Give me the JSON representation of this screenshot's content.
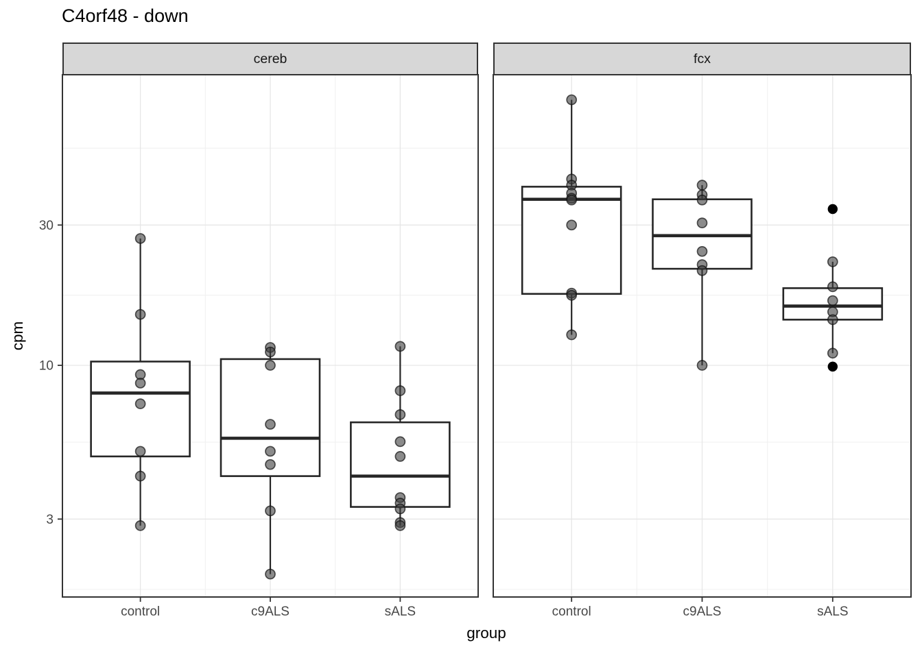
{
  "chart_data": {
    "type": "boxplot",
    "title": "C4orf48 - down",
    "xlabel": "group",
    "ylabel": "cpm",
    "categories": [
      "control",
      "c9ALS",
      "sALS"
    ],
    "y_axis": {
      "scale": "log10",
      "limits": [
        1.63,
        97
      ],
      "ticks": [
        {
          "value": 30,
          "label": "30"
        },
        {
          "value": 10,
          "label": "10"
        },
        {
          "value": 3,
          "label": "3"
        }
      ],
      "minor_ticks": [
        54.77,
        17.32,
        5.48,
        1.73
      ]
    },
    "legend": "none",
    "grid": "on",
    "facets": [
      {
        "label": "cereb",
        "groups": [
          {
            "name": "control",
            "q1": 4.9,
            "median": 8.05,
            "q3": 10.3,
            "whisker_low": 2.85,
            "whisker_high": 27,
            "points": [
              27,
              14.9,
              9.3,
              8.7,
              7.4,
              5.1,
              4.2,
              2.85
            ],
            "outliers": []
          },
          {
            "name": "c9ALS",
            "q1": 4.2,
            "median": 5.65,
            "q3": 10.5,
            "whisker_low": 1.95,
            "whisker_high": 11.5,
            "points": [
              11.5,
              11.1,
              10.0,
              6.3,
              5.1,
              4.6,
              3.2,
              1.95
            ],
            "outliers": []
          },
          {
            "name": "sALS",
            "q1": 3.3,
            "median": 4.2,
            "q3": 6.4,
            "whisker_low": 2.85,
            "whisker_high": 11.6,
            "points": [
              11.6,
              8.2,
              6.8,
              5.5,
              4.9,
              3.55,
              3.4,
              3.25,
              2.92,
              2.85
            ],
            "outliers": []
          }
        ]
      },
      {
        "label": "fcx",
        "groups": [
          {
            "name": "control",
            "q1": 17.5,
            "median": 36.7,
            "q3": 40.5,
            "whisker_low": 12.7,
            "whisker_high": 80,
            "points": [
              80,
              43,
              41,
              38.5,
              37,
              36.5,
              30,
              17.6,
              17.3,
              12.7
            ],
            "outliers": []
          },
          {
            "name": "c9ALS",
            "q1": 21.3,
            "median": 27.6,
            "q3": 36.7,
            "whisker_low": 10,
            "whisker_high": 41,
            "points": [
              41,
              38,
              36.5,
              30.5,
              24.4,
              22,
              21,
              10
            ],
            "outliers": []
          },
          {
            "name": "sALS",
            "q1": 14.3,
            "median": 15.9,
            "q3": 18.3,
            "whisker_low": 11,
            "whisker_high": 22.5,
            "points": [
              22.5,
              18.5,
              16.6,
              15.2,
              14.3,
              11
            ],
            "outliers": [
              34,
              9.9
            ]
          }
        ]
      }
    ]
  },
  "style": {
    "panel_border": "#333333",
    "strip_fill": "#D7D7D7",
    "strip_border": "#333333",
    "grid_major": "#E6E6E6",
    "grid_minor": "#F1F1F1",
    "box_color": "#262626",
    "box_fill": "#FFFFFF",
    "point_fill": "#3D3D3D",
    "outlier_fill": "#000000",
    "tick_color": "#333333",
    "tick_label_color": "#474747",
    "text_color": "#000000"
  }
}
